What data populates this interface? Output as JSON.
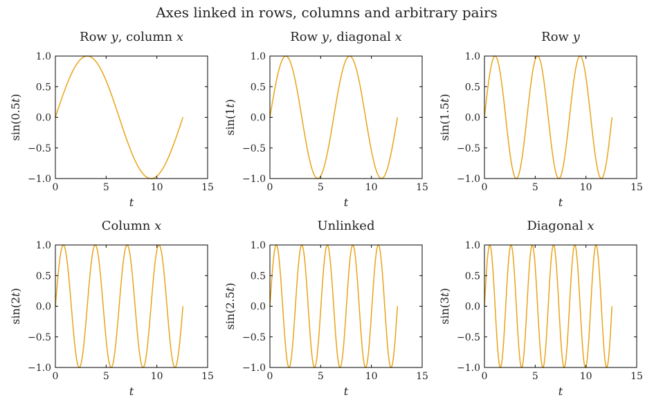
{
  "figure": {
    "title": "Axes linked in rows, columns and arbitrary pairs"
  },
  "style": {
    "line_color": "#e8a317"
  },
  "chart_data": [
    {
      "type": "line",
      "title": "Row y, column x",
      "title_parts": [
        {
          "t": "Row "
        },
        {
          "t": "y",
          "i": true
        },
        {
          "t": ", column "
        },
        {
          "t": "x",
          "i": true
        }
      ],
      "xlabel": "t",
      "ylabel": "sin(0.5t)",
      "ylabel_parts": [
        {
          "t": "sin(0.5"
        },
        {
          "t": "t",
          "i": true
        },
        {
          "t": ")"
        }
      ],
      "xlim": [
        0,
        15
      ],
      "ylim": [
        -1,
        1
      ],
      "xticks": [
        0,
        5,
        10,
        15
      ],
      "xtick_labels": [
        "0",
        "5",
        "10",
        "15"
      ],
      "yticks": [
        -1.0,
        -0.5,
        0.0,
        0.5,
        1.0
      ],
      "ytick_labels": [
        "−1.0",
        "−0.5",
        "0.0",
        "0.5",
        "1.0"
      ],
      "grid": false,
      "series": [
        {
          "function": "sin(0.5t)",
          "frequency": 0.5,
          "x_range": [
            0,
            12.566
          ]
        }
      ]
    },
    {
      "type": "line",
      "title": "Row y, diagonal x",
      "title_parts": [
        {
          "t": "Row "
        },
        {
          "t": "y",
          "i": true
        },
        {
          "t": ", diagonal "
        },
        {
          "t": "x",
          "i": true
        }
      ],
      "xlabel": "t",
      "ylabel": "sin(1t)",
      "ylabel_parts": [
        {
          "t": "sin(1"
        },
        {
          "t": "t",
          "i": true
        },
        {
          "t": ")"
        }
      ],
      "xlim": [
        0,
        15
      ],
      "ylim": [
        -1,
        1
      ],
      "xticks": [
        0,
        5,
        10,
        15
      ],
      "xtick_labels": [
        "0",
        "5",
        "10",
        "15"
      ],
      "yticks": [
        -1.0,
        -0.5,
        0.0,
        0.5,
        1.0
      ],
      "ytick_labels": [
        "−1.0",
        "−0.5",
        "0.0",
        "0.5",
        "1.0"
      ],
      "grid": false,
      "series": [
        {
          "function": "sin(1t)",
          "frequency": 1,
          "x_range": [
            0,
            12.566
          ]
        }
      ]
    },
    {
      "type": "line",
      "title": "Row y",
      "title_parts": [
        {
          "t": "Row "
        },
        {
          "t": "y",
          "i": true
        }
      ],
      "xlabel": "t",
      "ylabel": "sin(1.5t)",
      "ylabel_parts": [
        {
          "t": "sin(1.5"
        },
        {
          "t": "t",
          "i": true
        },
        {
          "t": ")"
        }
      ],
      "xlim": [
        0,
        15
      ],
      "ylim": [
        -1,
        1
      ],
      "xticks": [
        0,
        5,
        10,
        15
      ],
      "xtick_labels": [
        "0",
        "5",
        "10",
        "15"
      ],
      "yticks": [
        -1.0,
        -0.5,
        0.0,
        0.5,
        1.0
      ],
      "ytick_labels": [
        "−1.0",
        "−0.5",
        "0.0",
        "0.5",
        "1.0"
      ],
      "grid": false,
      "series": [
        {
          "function": "sin(1.5t)",
          "frequency": 1.5,
          "x_range": [
            0,
            12.566
          ]
        }
      ]
    },
    {
      "type": "line",
      "title": "Column x",
      "title_parts": [
        {
          "t": "Column "
        },
        {
          "t": "x",
          "i": true
        }
      ],
      "xlabel": "t",
      "ylabel": "sin(2t)",
      "ylabel_parts": [
        {
          "t": "sin(2"
        },
        {
          "t": "t",
          "i": true
        },
        {
          "t": ")"
        }
      ],
      "xlim": [
        0,
        15
      ],
      "ylim": [
        -1,
        1
      ],
      "xticks": [
        0,
        5,
        10,
        15
      ],
      "xtick_labels": [
        "0",
        "5",
        "10",
        "15"
      ],
      "yticks": [
        -1.0,
        -0.5,
        0.0,
        0.5,
        1.0
      ],
      "ytick_labels": [
        "−1.0",
        "−0.5",
        "0.0",
        "0.5",
        "1.0"
      ],
      "grid": false,
      "series": [
        {
          "function": "sin(2t)",
          "frequency": 2,
          "x_range": [
            0,
            12.566
          ]
        }
      ]
    },
    {
      "type": "line",
      "title": "Unlinked",
      "title_parts": [
        {
          "t": "Unlinked"
        }
      ],
      "xlabel": "t",
      "ylabel": "sin(2.5t)",
      "ylabel_parts": [
        {
          "t": "sin(2.5"
        },
        {
          "t": "t",
          "i": true
        },
        {
          "t": ")"
        }
      ],
      "xlim": [
        0,
        15
      ],
      "ylim": [
        -1,
        1
      ],
      "xticks": [
        0,
        5,
        10,
        15
      ],
      "xtick_labels": [
        "0",
        "5",
        "10",
        "15"
      ],
      "yticks": [
        -1.0,
        -0.5,
        0.0,
        0.5,
        1.0
      ],
      "ytick_labels": [
        "−1.0",
        "−0.5",
        "0.0",
        "0.5",
        "1.0"
      ],
      "grid": false,
      "series": [
        {
          "function": "sin(2.5t)",
          "frequency": 2.5,
          "x_range": [
            0,
            12.566
          ]
        }
      ]
    },
    {
      "type": "line",
      "title": "Diagonal x",
      "title_parts": [
        {
          "t": "Diagonal "
        },
        {
          "t": "x",
          "i": true
        }
      ],
      "xlabel": "t",
      "ylabel": "sin(3t)",
      "ylabel_parts": [
        {
          "t": "sin(3"
        },
        {
          "t": "t",
          "i": true
        },
        {
          "t": ")"
        }
      ],
      "xlim": [
        0,
        15
      ],
      "ylim": [
        -1,
        1
      ],
      "xticks": [
        0,
        5,
        10,
        15
      ],
      "xtick_labels": [
        "0",
        "5",
        "10",
        "15"
      ],
      "yticks": [
        -1.0,
        -0.5,
        0.0,
        0.5,
        1.0
      ],
      "ytick_labels": [
        "−1.0",
        "−0.5",
        "0.0",
        "0.5",
        "1.0"
      ],
      "grid": false,
      "series": [
        {
          "function": "sin(3t)",
          "frequency": 3,
          "x_range": [
            0,
            12.566
          ]
        }
      ]
    }
  ]
}
